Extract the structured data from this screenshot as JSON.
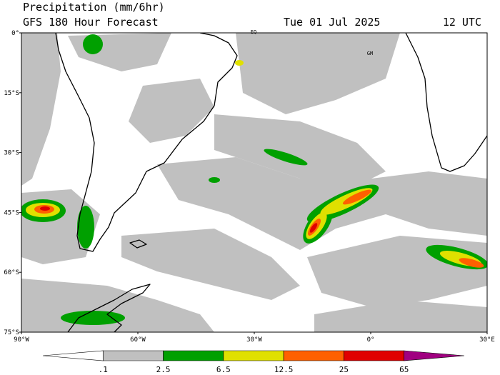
{
  "header": {
    "title": "Precipitation (mm/6hr)",
    "model": "GFS 180 Hour Forecast",
    "date": "Tue 01 Jul 2025",
    "time": "12 UTC"
  },
  "map": {
    "lat_labels": [
      "0°",
      "15°S",
      "30°S",
      "45°S",
      "60°S",
      "75°S"
    ],
    "lon_labels": [
      "90°W",
      "60°W",
      "30°W",
      "0°",
      "30°E"
    ],
    "annotations": [
      "EQ",
      "GM"
    ]
  },
  "legend": {
    "labels": [
      ".1",
      "2.5",
      "6.5",
      "12.5",
      "25",
      "65"
    ],
    "colors": [
      "#ffffff",
      "#c0c0c0",
      "#00a000",
      "#e0e000",
      "#ff6000",
      "#e00000",
      "#a00080"
    ]
  }
}
